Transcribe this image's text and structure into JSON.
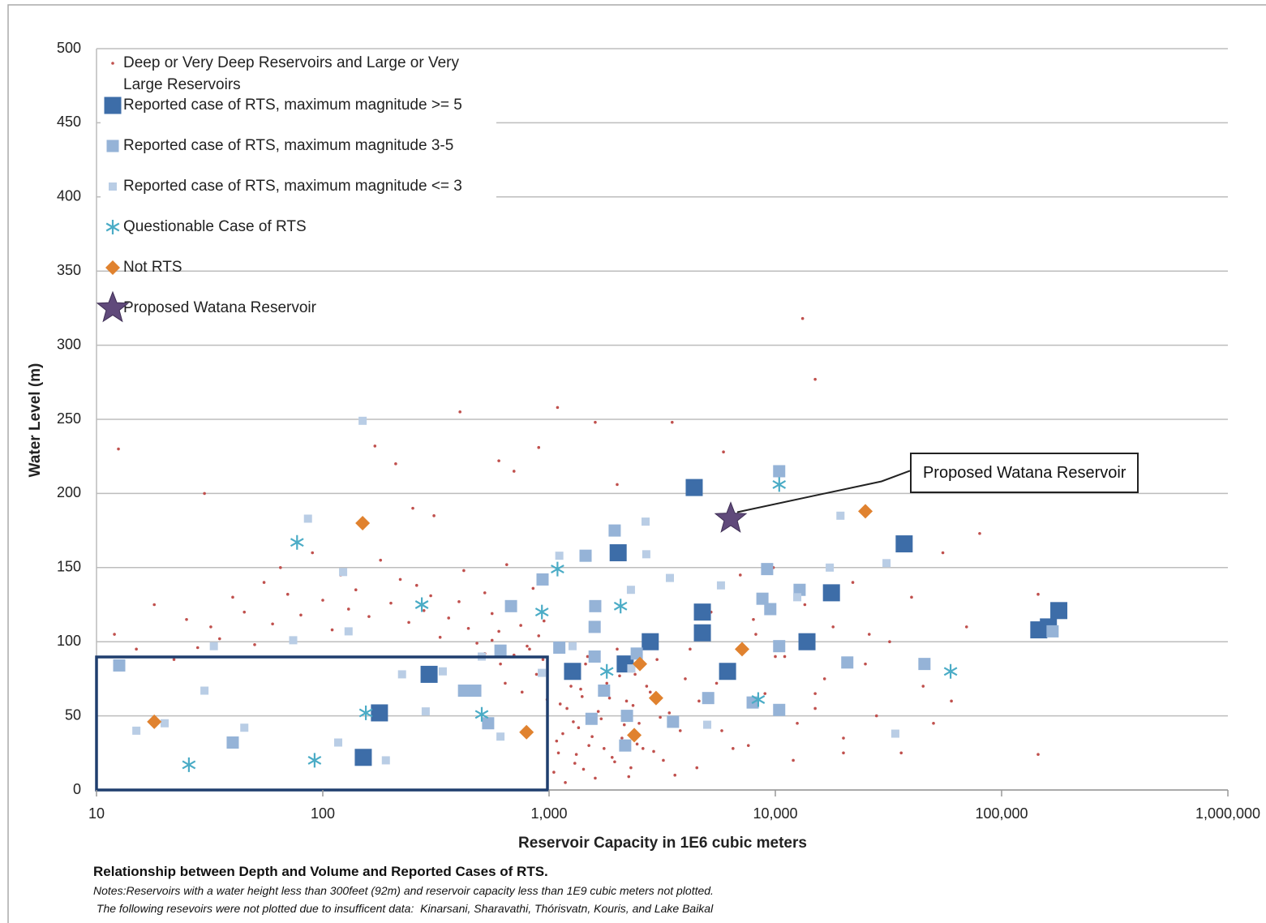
{
  "chart_data": {
    "type": "scatter",
    "x_label": "Reservoir Capacity in 1E6 cubic meters",
    "y_label": "Water Level (m)",
    "xscale": "log",
    "xlim": [
      10,
      1000000
    ],
    "xticks": [
      10,
      100,
      {
        "value": 1000,
        "label": "1,000"
      },
      {
        "value": 10000,
        "label": "10,000"
      },
      {
        "value": 100000,
        "label": "100,000"
      },
      {
        "value": 1000000,
        "label": "1,000,000"
      }
    ],
    "ylim": [
      0,
      500
    ],
    "yticks": [
      0,
      50,
      100,
      150,
      200,
      250,
      300,
      350,
      400,
      450,
      500
    ],
    "grid": true,
    "legend": "upper left",
    "series": [
      {
        "name": "Deep or Very Deep Reservoirs and Large or Very Large Reservoirs",
        "color": "#c0504d",
        "x": [
          1050,
          1100,
          1150,
          1200,
          1250,
          1300,
          1350,
          1400,
          1450,
          1500,
          1600,
          1700,
          1800,
          1900,
          2000,
          2100,
          2200,
          2300,
          2400,
          2500,
          2600,
          2800,
          3000,
          3200,
          3400,
          3600,
          3800,
          4000,
          1080,
          1120,
          1180,
          1220,
          1280,
          1320,
          1380,
          1420,
          1480,
          1550,
          1650,
          1750,
          1850,
          1950,
          2050,
          2150,
          2250,
          2350,
          2450,
          2700,
          2900,
          3100,
          12,
          15,
          18,
          22,
          25,
          28,
          32,
          35,
          40,
          45,
          50,
          55,
          60,
          65,
          70,
          80,
          90,
          100,
          110,
          120,
          130,
          140,
          160,
          180,
          200,
          220,
          240,
          260,
          280,
          300,
          330,
          360,
          400,
          440,
          480,
          520,
          560,
          600,
          650,
          700,
          750,
          800,
          850,
          900,
          950,
          170,
          210,
          250,
          310,
          420,
          610,
          640,
          700,
          760,
          820,
          880,
          940,
          980,
          560,
          520,
          4200,
          4600,
          5200,
          5800,
          6400,
          7000,
          7600,
          8200,
          9000,
          9800,
          11000,
          12000,
          13500,
          15000,
          16500,
          18000,
          20000,
          22000,
          25000,
          28000,
          32000,
          36000,
          40000,
          45000,
          50000,
          55000,
          60000,
          70000,
          80000,
          145000,
          145000,
          4500,
          5500,
          6500,
          8000,
          10000,
          12500,
          15000,
          20000,
          26000,
          13200,
          15000,
          1090,
          404,
          12.5,
          30,
          600,
          700,
          1600,
          3500,
          5900,
          900,
          2000
        ],
        "values": [
          12,
          25,
          38,
          55,
          70,
          18,
          42,
          63,
          85,
          30,
          8,
          48,
          72,
          22,
          95,
          35,
          60,
          15,
          78,
          45,
          28,
          66,
          88,
          20,
          52,
          10,
          40,
          75,
          33,
          58,
          5,
          82,
          46,
          24,
          68,
          14,
          90,
          36,
          53,
          28,
          62,
          19,
          77,
          44,
          9,
          57,
          31,
          70,
          26,
          49,
          105,
          95,
          125,
          88,
          115,
          96,
          110,
          102,
          130,
          120,
          98,
          140,
          112,
          150,
          132,
          118,
          160,
          128,
          108,
          145,
          122,
          135,
          117,
          155,
          126,
          142,
          113,
          138,
          121,
          131,
          103,
          116,
          127,
          109,
          99,
          133,
          119,
          107,
          152,
          124,
          111,
          97,
          136,
          104,
          114,
          232,
          220,
          190,
          185,
          148,
          85,
          72,
          91,
          66,
          95,
          78,
          88,
          61,
          101,
          92,
          95,
          60,
          120,
          40,
          80,
          145,
          30,
          105,
          65,
          150,
          90,
          20,
          125,
          55,
          75,
          110,
          35,
          140,
          85,
          50,
          100,
          25,
          130,
          70,
          45,
          160,
          60,
          110,
          173,
          24,
          132,
          15,
          72,
          28,
          115,
          90,
          45,
          65,
          25,
          105,
          318,
          277,
          258,
          255,
          230,
          200,
          222,
          215,
          248,
          248,
          228,
          231,
          206
        ]
      },
      {
        "name": "Reported case of RTS, maximum magnitude >= 5",
        "color": "#3d6da8",
        "x": [
          295,
          178,
          151,
          1270,
          2020,
          2170,
          2800,
          4380,
          4760,
          4760,
          6150,
          13800,
          17700,
          37100,
          146000,
          161000,
          179000
        ],
        "values": [
          78,
          52,
          22,
          80,
          160,
          85,
          100,
          204,
          120,
          106,
          80,
          100,
          133,
          166,
          108,
          110,
          121
        ]
      },
      {
        "name": "Reported case of RTS, maximum magnitude 3-5",
        "color": "#95b3d7",
        "x": [
          12.6,
          421,
          472,
          538,
          610,
          679,
          936,
          1110,
          1450,
          1540,
          1590,
          1600,
          1590,
          1750,
          1950,
          2210,
          2170,
          2440,
          3530,
          5050,
          8770,
          9200,
          9500,
          10400,
          10400,
          10400,
          7940,
          12800,
          20800,
          45600,
          168000,
          40
        ],
        "values": [
          84,
          67,
          67,
          45,
          94,
          124,
          142,
          96,
          158,
          48,
          90,
          124,
          110,
          67,
          175,
          50,
          30,
          92,
          46,
          62,
          129,
          149,
          122,
          97,
          54,
          215,
          59,
          135,
          86,
          85,
          107,
          32
        ]
      },
      {
        "name": "Reported case of RTS, maximum magnitude <= 3",
        "color": "#b9cde5",
        "x": [
          150,
          86,
          123,
          130,
          74,
          33,
          30,
          20,
          15,
          45,
          117,
          190,
          285,
          224,
          339,
          504,
          610,
          929,
          1110,
          1270,
          2300,
          2670,
          2690,
          3420,
          5000,
          5750,
          17400,
          19400,
          31000,
          33900,
          12500,
          2310
        ],
        "values": [
          249,
          183,
          147,
          107,
          101,
          97,
          67,
          45,
          40,
          42,
          32,
          20,
          53,
          78,
          80,
          90,
          36,
          79,
          158,
          97,
          135,
          181,
          159,
          143,
          44,
          138,
          150,
          185,
          153,
          38,
          130,
          82
        ]
      },
      {
        "name": "Questionable Case of RTS",
        "color": "#4bacc6",
        "x": [
          77,
          274,
          1090,
          930,
          2070,
          1800,
          10400,
          8400,
          59500,
          155,
          504,
          25.6,
          92
        ],
        "values": [
          167,
          125,
          149,
          120,
          124,
          80,
          206,
          61,
          80,
          52,
          51,
          17,
          20
        ]
      },
      {
        "name": "Not RTS",
        "color": "#e0822f",
        "x": [
          150,
          18,
          795,
          2520,
          2380,
          2970,
          7130,
          25000
        ],
        "values": [
          180,
          46,
          39,
          85,
          37,
          62,
          95,
          188
        ]
      },
      {
        "name": "Proposed Watana Reservoir",
        "color": "#604a7b",
        "x": [
          6350
        ],
        "values": [
          183
        ]
      }
    ],
    "annotation": "Proposed Watana Reservoir",
    "caption": "Relationship between Depth and Volume and Reported Cases of RTS.",
    "notes": [
      "Notes:Reservoirs with a water height less than 300feet (92m) and reservoir capacity less than 1E9 cubic meters not plotted.",
      " The following resevoirs were not plotted due to insufficent data:  Kinarsani, Sharavathi, Thórisvatn, Kouris, and Lake Baikal"
    ]
  }
}
